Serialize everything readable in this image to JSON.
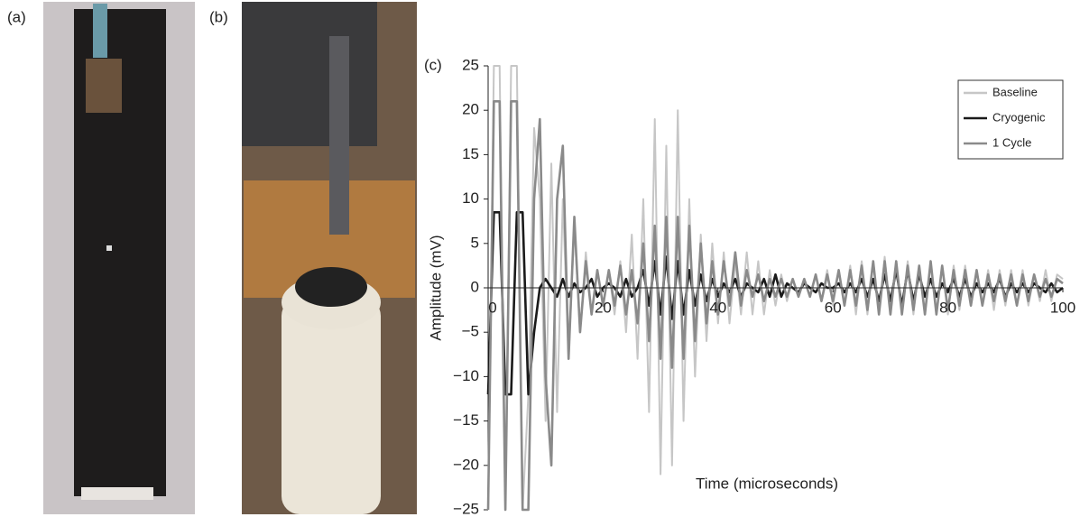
{
  "panel_labels": [
    "(a)",
    "(b)",
    "(c)"
  ],
  "chart_data": {
    "type": "line",
    "xlabel": "Time (microseconds)",
    "ylabel": "Amplitude (mV)",
    "x": [
      0,
      1,
      2,
      3,
      4,
      5,
      6,
      7,
      8,
      9,
      10,
      11,
      12,
      13,
      14,
      15,
      16,
      17,
      18,
      19,
      20,
      21,
      22,
      23,
      24,
      25,
      26,
      27,
      28,
      29,
      30,
      31,
      32,
      33,
      34,
      35,
      36,
      37,
      38,
      39,
      40,
      41,
      42,
      43,
      44,
      45,
      46,
      47,
      48,
      49,
      50,
      51,
      52,
      53,
      54,
      55,
      56,
      57,
      58,
      59,
      60,
      61,
      62,
      63,
      64,
      65,
      66,
      67,
      68,
      69,
      70,
      71,
      72,
      73,
      74,
      75,
      76,
      77,
      78,
      79,
      80,
      81,
      82,
      83,
      84,
      85,
      86,
      87,
      88,
      89,
      90,
      91,
      92,
      93,
      94,
      95,
      96,
      97,
      98,
      99,
      100
    ],
    "xlim": [
      0,
      100
    ],
    "xticks": [
      0,
      20,
      40,
      60,
      80,
      100
    ],
    "ylim": [
      -25,
      25
    ],
    "yticks": [
      {
        "value": -25,
        "label": "−25"
      },
      {
        "value": -20,
        "label": "−20"
      },
      {
        "value": -15,
        "label": "−15"
      },
      {
        "value": -10,
        "label": "−10"
      },
      {
        "value": -5,
        "label": "−5"
      },
      0,
      5,
      10,
      15,
      20,
      25
    ],
    "legend": "top-right",
    "series": [
      {
        "name": "Baseline",
        "color": "#c6c6c6",
        "values": [
          -25,
          25,
          25,
          -25,
          25,
          25,
          -25,
          -12,
          18,
          10,
          -15,
          14,
          -14,
          10,
          -8,
          7,
          -5,
          4,
          -3,
          2,
          -2,
          2,
          -3,
          3,
          -5,
          6,
          -8,
          10,
          -14,
          19,
          -21,
          16,
          -20,
          20,
          -15,
          10,
          -10,
          6,
          -6,
          5,
          -4,
          4,
          -4,
          3,
          -3,
          4,
          -3,
          3,
          -3,
          2,
          -2,
          1.5,
          -1.5,
          1,
          -1,
          1,
          -1,
          1.5,
          -1.5,
          2,
          -2,
          2,
          -2,
          2.5,
          -3,
          3,
          -3,
          3,
          -3,
          3.5,
          -3,
          3,
          -3,
          3,
          -3,
          2.5,
          -3,
          3,
          -3,
          2.5,
          -3,
          2.5,
          -2.5,
          2.5,
          -2,
          2,
          -2,
          2,
          -2.5,
          2,
          -2,
          2,
          -2,
          2,
          -2,
          1.5,
          -1.5,
          2,
          -1.5,
          1.5,
          1
        ]
      },
      {
        "name": "Cryogenic",
        "color": "#1a1a1a",
        "values": [
          -12,
          8.5,
          8.5,
          -12,
          -12,
          8.5,
          8.5,
          -12,
          -5,
          0,
          1,
          0,
          -1,
          1,
          -1,
          0.5,
          -0.5,
          0,
          1,
          -1,
          0,
          0.5,
          0,
          -1,
          1,
          -1,
          0,
          2,
          -2,
          3,
          -3,
          3.5,
          -3.5,
          3,
          -3,
          2,
          -2,
          1.5,
          -1.5,
          1,
          -1,
          0.5,
          -0.5,
          1,
          -1,
          0.5,
          0,
          -0.5,
          1,
          -1,
          1.5,
          -1,
          0.5,
          0,
          -0.5,
          0.5,
          0,
          -0.5,
          0.5,
          0,
          0,
          0.5,
          -0.5,
          0.5,
          -0.5,
          1,
          -1,
          1,
          -1.5,
          1.5,
          -1.5,
          2,
          -2,
          2,
          -1.5,
          1.5,
          -1,
          1,
          -1,
          0.5,
          -0.5,
          1,
          -1,
          1,
          -1,
          0.5,
          -0.5,
          0.5,
          -0.5,
          1,
          -1,
          0.5,
          -0.5,
          0.5,
          -0.5,
          0.5,
          0,
          -0.5,
          0.5,
          -0.5,
          0
        ]
      },
      {
        "name": "1 Cycle",
        "color": "#8a8a8a",
        "values": [
          -25,
          21,
          21,
          -25,
          21,
          21,
          -25,
          -25,
          10,
          19,
          -10,
          -20,
          10,
          16,
          -8,
          8,
          -5,
          3,
          -3,
          2,
          -2,
          2,
          -2,
          2.5,
          -3,
          2,
          -4,
          5,
          -6,
          7,
          -8,
          8,
          -9,
          8,
          -8,
          7,
          -6,
          5,
          -4,
          3,
          -3,
          3,
          -2,
          4,
          -2,
          2,
          -1,
          1.5,
          -1.5,
          1,
          -1,
          1,
          -1,
          1,
          -1,
          1,
          -1,
          1.5,
          -1.5,
          1.5,
          -1.5,
          2,
          -2,
          2,
          -2,
          2.5,
          -2.5,
          3,
          -3,
          3,
          -3,
          3,
          -3,
          2.5,
          -2.5,
          2.5,
          -3,
          3,
          -3,
          2.5,
          -2.5,
          2,
          -2,
          2,
          -2,
          2,
          -2,
          1.5,
          -1.5,
          1.5,
          -1.5,
          1.5,
          -2,
          1.5,
          -1.5,
          1.5,
          -1,
          1,
          -1,
          1,
          0.5
        ]
      }
    ]
  }
}
